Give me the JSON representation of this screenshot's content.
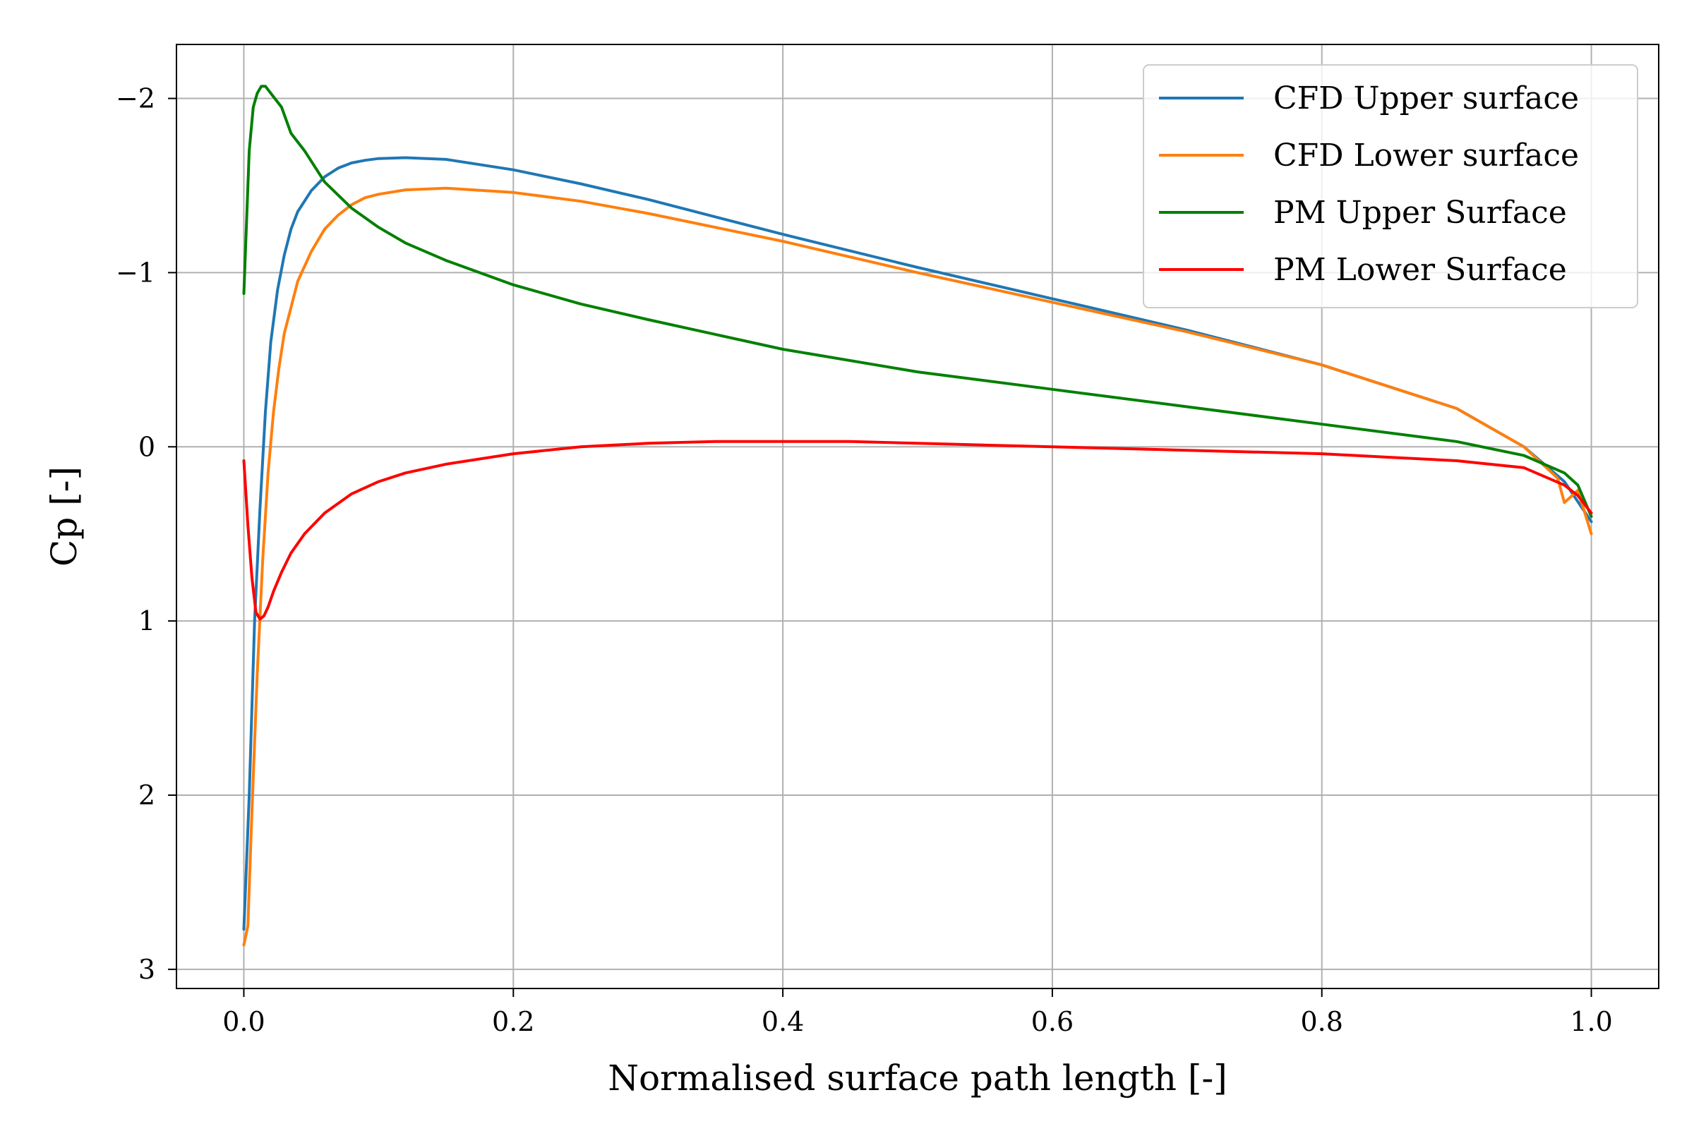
{
  "chart_data": {
    "type": "line",
    "xlabel": "Normalised surface path length [-]",
    "ylabel": "Cp [-]",
    "xlim": [
      -0.05,
      1.05
    ],
    "ylim": [
      3.11,
      -2.31
    ],
    "y_inverted": true,
    "xticks": [
      0.0,
      0.2,
      0.4,
      0.6,
      0.8,
      1.0
    ],
    "xtick_labels": [
      "0.0",
      "0.2",
      "0.4",
      "0.6",
      "0.8",
      "1.0"
    ],
    "yticks": [
      -2,
      -1,
      0,
      1,
      2,
      3
    ],
    "ytick_labels": [
      "−2",
      "−1",
      "0",
      "1",
      "2",
      "3"
    ],
    "grid": true,
    "legend_position": "top-right",
    "series": [
      {
        "name": "CFD Upper surface",
        "color": "#1f77b4",
        "x": [
          0.0,
          0.004,
          0.008,
          0.012,
          0.016,
          0.02,
          0.025,
          0.03,
          0.035,
          0.04,
          0.05,
          0.06,
          0.07,
          0.08,
          0.09,
          0.1,
          0.12,
          0.15,
          0.2,
          0.25,
          0.3,
          0.4,
          0.5,
          0.6,
          0.7,
          0.8,
          0.9,
          0.95,
          0.98,
          1.0
        ],
        "y": [
          2.77,
          2.0,
          1.0,
          0.35,
          -0.2,
          -0.6,
          -0.9,
          -1.1,
          -1.25,
          -1.35,
          -1.47,
          -1.55,
          -1.6,
          -1.63,
          -1.645,
          -1.655,
          -1.66,
          -1.65,
          -1.59,
          -1.51,
          -1.42,
          -1.22,
          -1.03,
          -0.85,
          -0.67,
          -0.47,
          -0.22,
          0.0,
          0.2,
          0.43
        ]
      },
      {
        "name": "CFD Lower surface",
        "color": "#ff7f0e",
        "x": [
          0.0,
          0.003,
          0.006,
          0.01,
          0.014,
          0.018,
          0.022,
          0.026,
          0.03,
          0.035,
          0.04,
          0.05,
          0.06,
          0.07,
          0.08,
          0.09,
          0.1,
          0.12,
          0.15,
          0.2,
          0.25,
          0.3,
          0.4,
          0.5,
          0.6,
          0.7,
          0.8,
          0.9,
          0.95,
          0.975,
          0.98,
          0.99,
          1.0
        ],
        "y": [
          2.86,
          2.75,
          2.1,
          1.3,
          0.65,
          0.15,
          -0.2,
          -0.45,
          -0.65,
          -0.8,
          -0.95,
          -1.12,
          -1.25,
          -1.33,
          -1.39,
          -1.43,
          -1.45,
          -1.475,
          -1.485,
          -1.46,
          -1.41,
          -1.34,
          -1.18,
          -1.0,
          -0.83,
          -0.66,
          -0.47,
          -0.22,
          0.0,
          0.18,
          0.32,
          0.25,
          0.5
        ]
      },
      {
        "name": "PM Upper Surface",
        "color": "#008000",
        "x": [
          0.0,
          0.004,
          0.007,
          0.01,
          0.013,
          0.016,
          0.02,
          0.028,
          0.035,
          0.045,
          0.06,
          0.08,
          0.1,
          0.12,
          0.15,
          0.2,
          0.25,
          0.3,
          0.4,
          0.5,
          0.6,
          0.7,
          0.8,
          0.9,
          0.95,
          0.98,
          0.99,
          1.0
        ],
        "y": [
          -0.88,
          -1.7,
          -1.95,
          -2.03,
          -2.07,
          -2.07,
          -2.03,
          -1.95,
          -1.8,
          -1.7,
          -1.52,
          -1.37,
          -1.26,
          -1.17,
          -1.07,
          -0.93,
          -0.82,
          -0.73,
          -0.56,
          -0.43,
          -0.33,
          -0.23,
          -0.13,
          -0.03,
          0.05,
          0.15,
          0.22,
          0.4
        ]
      },
      {
        "name": "PM Lower Surface",
        "color": "#ff0000",
        "x": [
          0.0,
          0.003,
          0.006,
          0.009,
          0.012,
          0.015,
          0.018,
          0.022,
          0.028,
          0.035,
          0.045,
          0.06,
          0.08,
          0.1,
          0.12,
          0.15,
          0.2,
          0.25,
          0.3,
          0.35,
          0.4,
          0.45,
          0.5,
          0.6,
          0.7,
          0.8,
          0.85,
          0.9,
          0.95,
          0.98,
          0.99,
          1.0
        ],
        "y": [
          0.08,
          0.45,
          0.75,
          0.95,
          0.99,
          0.97,
          0.92,
          0.83,
          0.72,
          0.61,
          0.5,
          0.38,
          0.27,
          0.2,
          0.15,
          0.1,
          0.04,
          0.0,
          -0.02,
          -0.03,
          -0.03,
          -0.03,
          -0.02,
          0.0,
          0.02,
          0.04,
          0.06,
          0.08,
          0.12,
          0.22,
          0.28,
          0.38
        ]
      }
    ]
  }
}
